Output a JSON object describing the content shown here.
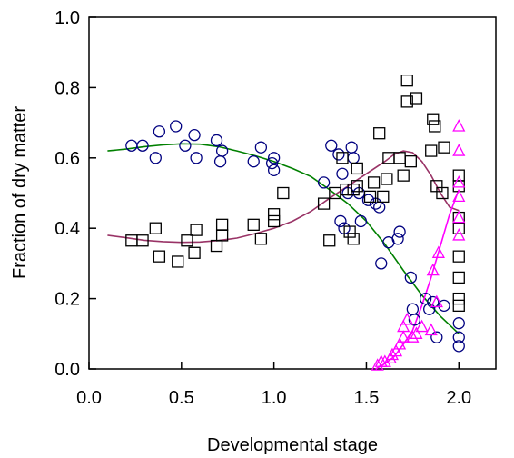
{
  "chart_data": {
    "type": "scatter",
    "title": "",
    "xlabel": "Developmental stage",
    "ylabel": "Fraction of dry matter",
    "xlim": [
      0.0,
      2.2
    ],
    "ylim": [
      0.0,
      1.0
    ],
    "x_ticks": [
      0.0,
      0.5,
      1.0,
      1.5,
      2.0
    ],
    "x_tick_labels": [
      "0.0",
      "0.5",
      "1.0",
      "1.5",
      "2.0"
    ],
    "y_ticks": [
      0.0,
      0.2,
      0.4,
      0.6,
      0.8,
      1.0
    ],
    "y_tick_labels": [
      "0.0",
      "0.2",
      "0.4",
      "0.6",
      "0.8",
      "1.0"
    ],
    "grid": false,
    "legend": "none",
    "series": [
      {
        "marker": "circle",
        "color": "#000080",
        "points": [
          [
            0.23,
            0.635
          ],
          [
            0.29,
            0.635
          ],
          [
            0.36,
            0.6
          ],
          [
            0.38,
            0.675
          ],
          [
            0.47,
            0.69
          ],
          [
            0.52,
            0.635
          ],
          [
            0.57,
            0.665
          ],
          [
            0.58,
            0.6
          ],
          [
            0.69,
            0.65
          ],
          [
            0.71,
            0.59
          ],
          [
            0.72,
            0.62
          ],
          [
            0.89,
            0.59
          ],
          [
            0.93,
            0.63
          ],
          [
            0.99,
            0.585
          ],
          [
            1.0,
            0.565
          ],
          [
            1.0,
            0.6
          ],
          [
            1.27,
            0.53
          ],
          [
            1.31,
            0.635
          ],
          [
            1.35,
            0.61
          ],
          [
            1.37,
            0.555
          ],
          [
            1.42,
            0.63
          ],
          [
            1.43,
            0.6
          ],
          [
            1.4,
            0.5
          ],
          [
            1.36,
            0.42
          ],
          [
            1.38,
            0.4
          ],
          [
            1.46,
            0.5
          ],
          [
            1.47,
            0.42
          ],
          [
            1.51,
            0.48
          ],
          [
            1.55,
            0.47
          ],
          [
            1.57,
            0.46
          ],
          [
            1.58,
            0.3
          ],
          [
            1.62,
            0.36
          ],
          [
            1.67,
            0.37
          ],
          [
            1.68,
            0.39
          ],
          [
            1.74,
            0.26
          ],
          [
            1.75,
            0.17
          ],
          [
            1.76,
            0.14
          ],
          [
            1.82,
            0.2
          ],
          [
            1.84,
            0.17
          ],
          [
            1.86,
            0.19
          ],
          [
            1.88,
            0.09
          ],
          [
            1.92,
            0.18
          ],
          [
            2.0,
            0.13
          ],
          [
            2.0,
            0.09
          ],
          [
            2.0,
            0.065
          ]
        ]
      },
      {
        "marker": "square",
        "color": "#000000",
        "points": [
          [
            0.23,
            0.365
          ],
          [
            0.29,
            0.365
          ],
          [
            0.36,
            0.4
          ],
          [
            0.38,
            0.32
          ],
          [
            0.48,
            0.305
          ],
          [
            0.53,
            0.365
          ],
          [
            0.57,
            0.33
          ],
          [
            0.58,
            0.395
          ],
          [
            0.69,
            0.35
          ],
          [
            0.72,
            0.38
          ],
          [
            0.72,
            0.41
          ],
          [
            0.89,
            0.41
          ],
          [
            0.93,
            0.37
          ],
          [
            1.0,
            0.42
          ],
          [
            1.0,
            0.44
          ],
          [
            1.05,
            0.5
          ],
          [
            1.27,
            0.47
          ],
          [
            1.3,
            0.365
          ],
          [
            1.33,
            0.5
          ],
          [
            1.37,
            0.6
          ],
          [
            1.41,
            0.39
          ],
          [
            1.43,
            0.37
          ],
          [
            1.39,
            0.51
          ],
          [
            1.43,
            0.51
          ],
          [
            1.45,
            0.57
          ],
          [
            1.45,
            0.52
          ],
          [
            1.52,
            0.49
          ],
          [
            1.54,
            0.53
          ],
          [
            1.57,
            0.67
          ],
          [
            1.59,
            0.49
          ],
          [
            1.61,
            0.54
          ],
          [
            1.62,
            0.6
          ],
          [
            1.68,
            0.6
          ],
          [
            1.7,
            0.55
          ],
          [
            1.72,
            0.82
          ],
          [
            1.72,
            0.76
          ],
          [
            1.74,
            0.59
          ],
          [
            1.77,
            0.77
          ],
          [
            1.85,
            0.62
          ],
          [
            1.86,
            0.71
          ],
          [
            1.87,
            0.69
          ],
          [
            1.88,
            0.52
          ],
          [
            1.92,
            0.63
          ],
          [
            1.91,
            0.5
          ],
          [
            2.0,
            0.55
          ],
          [
            2.0,
            0.52
          ],
          [
            2.0,
            0.43
          ],
          [
            2.0,
            0.4
          ],
          [
            2.0,
            0.32
          ],
          [
            2.0,
            0.26
          ],
          [
            2.0,
            0.2
          ],
          [
            2.0,
            0.18
          ]
        ]
      },
      {
        "marker": "triangle",
        "color": "#ff00ff",
        "points": [
          [
            1.56,
            0.01
          ],
          [
            1.58,
            0.02
          ],
          [
            1.6,
            0.02
          ],
          [
            1.63,
            0.03
          ],
          [
            1.64,
            0.04
          ],
          [
            1.66,
            0.05
          ],
          [
            1.68,
            0.07
          ],
          [
            1.7,
            0.09
          ],
          [
            1.7,
            0.12
          ],
          [
            1.72,
            0.14
          ],
          [
            1.75,
            0.09
          ],
          [
            1.77,
            0.1
          ],
          [
            1.8,
            0.12
          ],
          [
            1.85,
            0.11
          ],
          [
            1.86,
            0.28
          ],
          [
            1.88,
            0.19
          ],
          [
            1.89,
            0.33
          ],
          [
            2.0,
            0.69
          ],
          [
            2.0,
            0.62
          ],
          [
            2.0,
            0.53
          ],
          [
            2.0,
            0.49
          ],
          [
            2.0,
            0.43
          ],
          [
            2.0,
            0.38
          ]
        ]
      }
    ],
    "fit_lines": [
      {
        "color": "#008000",
        "points": [
          [
            0.1,
            0.62
          ],
          [
            0.2,
            0.625
          ],
          [
            0.3,
            0.632
          ],
          [
            0.4,
            0.637
          ],
          [
            0.5,
            0.64
          ],
          [
            0.6,
            0.639
          ],
          [
            0.7,
            0.632
          ],
          [
            0.8,
            0.62
          ],
          [
            0.9,
            0.606
          ],
          [
            1.0,
            0.59
          ],
          [
            1.1,
            0.57
          ],
          [
            1.2,
            0.547
          ],
          [
            1.3,
            0.51
          ],
          [
            1.4,
            0.47
          ],
          [
            1.5,
            0.42
          ],
          [
            1.6,
            0.355
          ],
          [
            1.7,
            0.28
          ],
          [
            1.8,
            0.21
          ],
          [
            1.9,
            0.15
          ],
          [
            2.0,
            0.1
          ]
        ]
      },
      {
        "color": "#993366",
        "points": [
          [
            0.1,
            0.38
          ],
          [
            0.2,
            0.373
          ],
          [
            0.3,
            0.366
          ],
          [
            0.4,
            0.362
          ],
          [
            0.5,
            0.36
          ],
          [
            0.6,
            0.361
          ],
          [
            0.7,
            0.365
          ],
          [
            0.8,
            0.372
          ],
          [
            0.9,
            0.385
          ],
          [
            1.0,
            0.4
          ],
          [
            1.1,
            0.42
          ],
          [
            1.2,
            0.448
          ],
          [
            1.3,
            0.485
          ],
          [
            1.4,
            0.52
          ],
          [
            1.5,
            0.555
          ],
          [
            1.6,
            0.59
          ],
          [
            1.65,
            0.61
          ],
          [
            1.7,
            0.62
          ],
          [
            1.75,
            0.615
          ],
          [
            1.8,
            0.59
          ],
          [
            1.85,
            0.55
          ],
          [
            1.9,
            0.5
          ],
          [
            1.95,
            0.46
          ],
          [
            2.0,
            0.45
          ]
        ]
      },
      {
        "color": "#ff00ff",
        "points": [
          [
            1.55,
            0.0
          ],
          [
            1.6,
            0.015
          ],
          [
            1.65,
            0.035
          ],
          [
            1.7,
            0.07
          ],
          [
            1.75,
            0.11
          ],
          [
            1.8,
            0.18
          ],
          [
            1.85,
            0.26
          ],
          [
            1.9,
            0.35
          ],
          [
            1.95,
            0.44
          ],
          [
            2.0,
            0.51
          ]
        ]
      }
    ]
  }
}
